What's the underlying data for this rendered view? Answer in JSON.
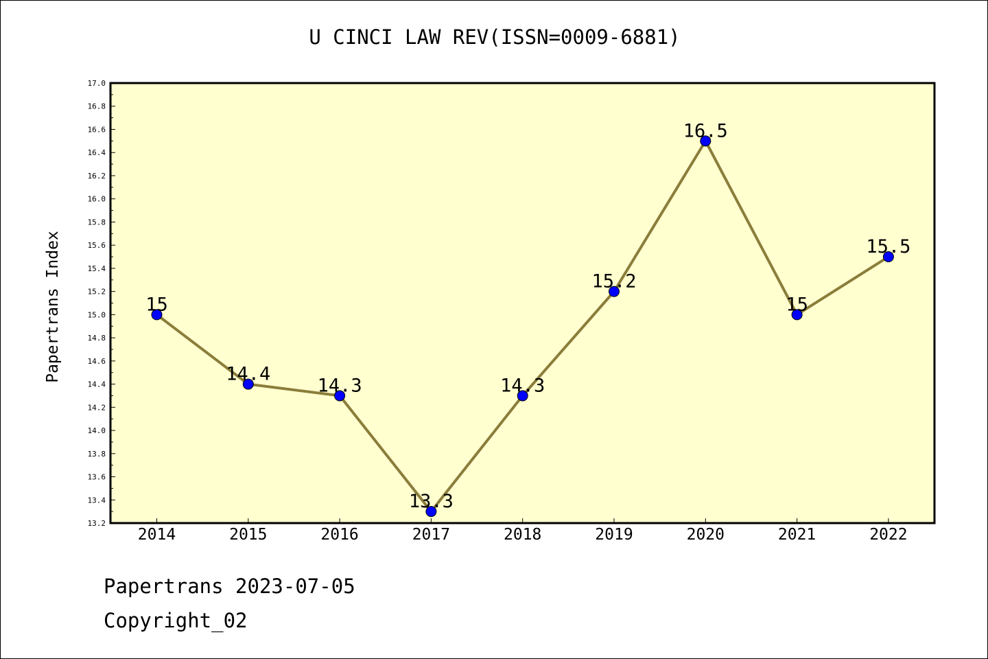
{
  "title": "U CINCI LAW REV(ISSN=0009-6881)",
  "footer": {
    "date_line": "Papertrans 2023-07-05",
    "copyright": "Copyright_02"
  },
  "colors": {
    "plot_background": "#ffffd0",
    "line": "#8b7d3a",
    "marker": "#0000ff"
  },
  "chart_data": {
    "type": "line",
    "title": "U CINCI LAW REV(ISSN=0009-6881)",
    "xlabel": "",
    "ylabel": "Papertrans Index",
    "categories": [
      "2014",
      "2015",
      "2016",
      "2017",
      "2018",
      "2019",
      "2020",
      "2021",
      "2022"
    ],
    "values": [
      15,
      14.4,
      14.3,
      13.3,
      14.3,
      15.2,
      16.5,
      15,
      15.5
    ],
    "data_labels": [
      "15",
      "14.4",
      "14.3",
      "13.3",
      "14.3",
      "15.2",
      "16.5",
      "15",
      "15.5"
    ],
    "ylim": [
      13.2,
      17.0
    ],
    "y_ticks": [
      "13.2",
      "13.4",
      "13.6",
      "13.8",
      "14.0",
      "14.2",
      "14.4",
      "14.6",
      "14.8",
      "15.0",
      "15.2",
      "15.4",
      "15.6",
      "15.8",
      "16.0",
      "16.2",
      "16.4",
      "16.6",
      "16.8",
      "17.0"
    ],
    "grid": false,
    "legend": "none"
  }
}
